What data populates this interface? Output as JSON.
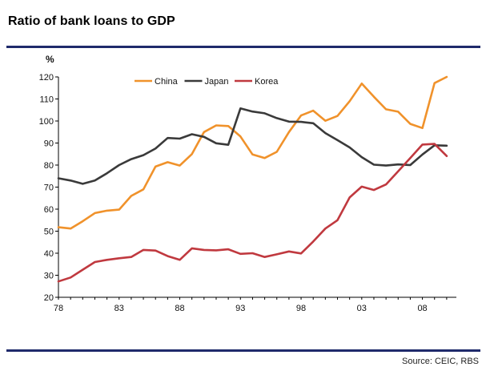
{
  "header": {
    "title": "Ratio of bank loans to GDP"
  },
  "footer": {
    "source": "Source:  CEIC, RBS"
  },
  "chart_data": {
    "type": "line",
    "title": "Ratio of bank loans to GDP",
    "ylabel": "%",
    "xlabel": "",
    "ylim": [
      20,
      120
    ],
    "yticks": [
      20,
      30,
      40,
      50,
      60,
      70,
      80,
      90,
      100,
      110,
      120
    ],
    "xlim": [
      1978,
      2010.8
    ],
    "xticks": [
      {
        "value": 1978,
        "label": "78"
      },
      {
        "value": 1983,
        "label": "83"
      },
      {
        "value": 1988,
        "label": "88"
      },
      {
        "value": 1993,
        "label": "93"
      },
      {
        "value": 1998,
        "label": "98"
      },
      {
        "value": 2003,
        "label": "03"
      },
      {
        "value": 2008,
        "label": "08"
      }
    ],
    "grid": false,
    "legend": "top-center",
    "series": [
      {
        "name": "China",
        "color": "#f0922b",
        "x": [
          1978,
          1979,
          1980,
          1981,
          1982,
          1983,
          1984,
          1985,
          1986,
          1987,
          1988,
          1989,
          1990,
          1991,
          1992,
          1993,
          1994,
          1995,
          1996,
          1997,
          1998,
          1999,
          2000,
          2001,
          2002,
          2003,
          2004,
          2005,
          2006,
          2007,
          2008,
          2009,
          2010
        ],
        "values": [
          51.8,
          51.2,
          54.5,
          58.2,
          59.3,
          59.8,
          66,
          69,
          79.3,
          81.3,
          79.8,
          85,
          95,
          98,
          97.7,
          93,
          84.8,
          83.2,
          86,
          95,
          102.5,
          104.7,
          100.1,
          102.3,
          109,
          117,
          111,
          105.3,
          104.2,
          98.7,
          96.8,
          117.2,
          120
        ]
      },
      {
        "name": "Japan",
        "color": "#3a3a3a",
        "x": [
          1978,
          1979,
          1980,
          1981,
          1982,
          1983,
          1984,
          1985,
          1986,
          1987,
          1988,
          1989,
          1990,
          1991,
          1992,
          1993,
          1994,
          1995,
          1996,
          1997,
          1998,
          1999,
          2000,
          2001,
          2002,
          2003,
          2004,
          2005,
          2006,
          2007,
          2008,
          2009,
          2010
        ],
        "values": [
          74,
          73,
          71.5,
          73,
          76.3,
          80,
          82.7,
          84.5,
          87.5,
          92.3,
          92,
          94,
          92.8,
          89.9,
          89.2,
          105.7,
          104.3,
          103.5,
          101.3,
          99.7,
          99.6,
          99,
          94.5,
          91.3,
          88,
          83.6,
          80.2,
          79.8,
          80.3,
          80,
          84.8,
          89,
          88.8
        ]
      },
      {
        "name": "Korea",
        "color": "#c0393f",
        "x": [
          1978,
          1979,
          1980,
          1981,
          1982,
          1983,
          1984,
          1985,
          1986,
          1987,
          1988,
          1989,
          1990,
          1991,
          1992,
          1993,
          1994,
          1995,
          1996,
          1997,
          1998,
          1999,
          2000,
          2001,
          2002,
          2003,
          2004,
          2005,
          2006,
          2007,
          2008,
          2009,
          2010
        ],
        "values": [
          27.2,
          29,
          32.5,
          36,
          37,
          37.7,
          38.3,
          41.5,
          41.2,
          38.7,
          37,
          42.2,
          41.5,
          41.3,
          41.8,
          39.7,
          40,
          38.3,
          39.5,
          40.8,
          39.9,
          45.3,
          51.2,
          55,
          65.3,
          70.2,
          68.7,
          71.2,
          77.2,
          83.2,
          89.3,
          89.6,
          84.1
        ]
      }
    ]
  }
}
